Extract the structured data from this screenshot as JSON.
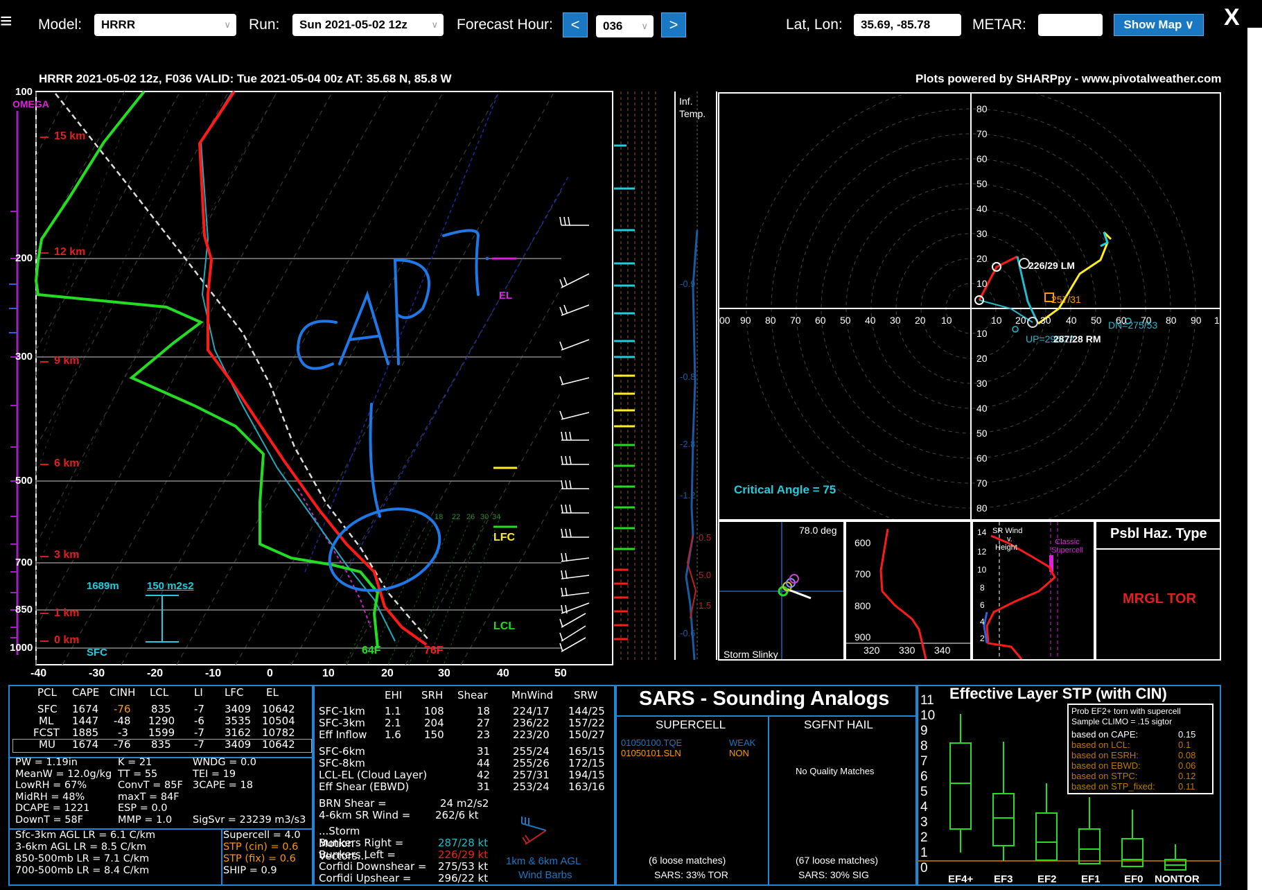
{
  "toolbar": {
    "model_label": "Model:",
    "model_value": "HRRR",
    "run_label": "Run:",
    "run_value": "Sun 2021-05-02 12z",
    "fh_label": "Forecast Hour:",
    "prev": "<",
    "fh_value": "036",
    "next": ">",
    "latlon_label": "Lat, Lon:",
    "latlon_value": "35.69, -85.78",
    "metar_label": "METAR:",
    "metar_value": "",
    "show_map": "Show Map ∨",
    "close": "X"
  },
  "header": {
    "title": "HRRR 2021-05-02 12z, F036  VALID: Tue 2021-05-04 00z  AT: 35.68 N, 85.8 W",
    "credit": "Plots powered by SHARPpy - www.pivotalweather.com"
  },
  "skewt": {
    "omega": "OMEGA",
    "pressure_labels": [
      "100",
      "200",
      "300",
      "500",
      "700",
      "850",
      "1000"
    ],
    "height_labels": [
      "15 km",
      "12 km",
      "9 km",
      "6 km",
      "3 km",
      "1 km",
      "0 km"
    ],
    "temp_labels": [
      "-40",
      "-30",
      "-20",
      "-10",
      "0",
      "10",
      "20",
      "30",
      "40",
      "50"
    ],
    "mixing_labels": [
      "18",
      "22",
      "26",
      "30",
      "34"
    ],
    "el": "EL",
    "lfc": "LFC",
    "lcl": "LCL",
    "sfc": "SFC",
    "lcl_height": "1689m",
    "srh_label": "150 m2s2",
    "sfc_td": "64F",
    "sfc_t": "76F",
    "annotation": "CAP?"
  },
  "inferred_temp": {
    "title1": "Inf.",
    "title2": "Temp.",
    "values": [
      "-0.9",
      "-0.8",
      "-2.8",
      "-1.2",
      "0.5",
      "5.0",
      "1.5",
      "-0.6"
    ]
  },
  "hodograph": {
    "critical_angle": "Critical Angle = 75",
    "x_labels": [
      "00",
      "90",
      "80",
      "70",
      "60",
      "50",
      "40",
      "30",
      "20",
      "10",
      "10",
      "20",
      "30",
      "40",
      "50",
      "60",
      "70",
      "80",
      "90",
      "1"
    ],
    "y_labels": [
      "80",
      "70",
      "60",
      "50",
      "40",
      "30",
      "20",
      "10",
      "10",
      "20",
      "30",
      "40",
      "50",
      "60",
      "70",
      "80"
    ],
    "lm": "226/29 LM",
    "mean": "257/31",
    "rm": "287/28 RM",
    "up": "UP=296/22",
    "dn": "DN=275/53"
  },
  "slinky": {
    "angle": "78.0 deg",
    "label": "Storm Slinky"
  },
  "theta": {
    "p_labels": [
      "600",
      "700",
      "800",
      "900"
    ],
    "t_labels": [
      "320",
      "330",
      "340"
    ]
  },
  "srwind": {
    "title": "SR Wind v. Height",
    "title_a": "SR Wind",
    "title_b": "v.",
    "title_c": "Height",
    "classic": "Classic Supercell",
    "y_labels": [
      "14",
      "12",
      "10",
      "8",
      "6",
      "4",
      "2"
    ]
  },
  "hazard": {
    "title": "Psbl Haz. Type",
    "value": "MRGL TOR"
  },
  "thermo": {
    "headers": [
      "PCL",
      "CAPE",
      "CINH",
      "LCL",
      "LI",
      "LFC",
      "EL"
    ],
    "rows": [
      [
        "SFC",
        "1674",
        "-76",
        "835",
        "-7",
        "3409",
        "10642"
      ],
      [
        "ML",
        "1447",
        "-48",
        "1290",
        "-6",
        "3535",
        "10504"
      ],
      [
        "FCST",
        "1885",
        "-3",
        "1599",
        "-7",
        "3162",
        "10782"
      ],
      [
        "MU",
        "1674",
        "-76",
        "835",
        "-7",
        "3409",
        "10642"
      ]
    ],
    "misc_col1": [
      "PW = 1.19in",
      "MeanW = 12.0g/kg",
      "LowRH = 67%",
      "MidRH = 48%",
      "DCAPE = 1221",
      "DownT = 58F"
    ],
    "misc_col2": [
      "K = 21",
      "TT = 55",
      "ConvT = 85F",
      "maxT = 84F",
      "ESP = 0.0",
      "MMP = 1.0"
    ],
    "misc_col3": [
      "WNDG = 0.0",
      "TEI = 19",
      "3CAPE = 18",
      "",
      "",
      "SigSvr = 23239 m3/s3"
    ],
    "lapse": [
      "Sfc-3km AGL LR = 6.1 C/km",
      "3-6km AGL LR = 8.5 C/km",
      "850-500mb LR = 7.1 C/km",
      "700-500mb LR = 8.4 C/km"
    ],
    "params": [
      "Supercell = 4.0",
      "STP (cin) = 0.6",
      "STP (fix) = 0.6",
      "SHIP = 0.9"
    ]
  },
  "kinematic": {
    "headers": [
      "EHI",
      "SRH",
      "Shear",
      "MnWind",
      "SRW"
    ],
    "rows": [
      [
        "SFC-1km",
        "1.1",
        "108",
        "18",
        "224/17",
        "144/25"
      ],
      [
        "SFC-3km",
        "2.1",
        "204",
        "27",
        "236/22",
        "157/22"
      ],
      [
        "Eff Inflow",
        "1.6",
        "150",
        "23",
        "223/20",
        "150/27"
      ],
      [
        "SFC-6km",
        "",
        "",
        "31",
        "255/24",
        "165/15"
      ],
      [
        "SFC-8km",
        "",
        "",
        "44",
        "255/26",
        "172/15"
      ],
      [
        "LCL-EL (Cloud Layer)",
        "",
        "",
        "42",
        "257/31",
        "194/15"
      ],
      [
        "Eff Shear (EBWD)",
        "",
        "",
        "31",
        "253/24",
        "163/16"
      ]
    ],
    "brn": [
      "BRN Shear =",
      "24 m2/s2"
    ],
    "sr46": [
      "4-6km SR Wind =",
      "262/6 kt"
    ],
    "storm_motion": "...Storm Motion Vectors...",
    "bunkers_right": [
      "Bunkers Right =",
      "287/28 kt"
    ],
    "bunkers_left": [
      "Bunkers Left =",
      "226/29 kt"
    ],
    "corfidi_down": [
      "Corfidi Downshear =",
      "275/53 kt"
    ],
    "corfidi_up": [
      "Corfidi Upshear =",
      "296/22 kt"
    ],
    "barb_label1": "1km & 6km AGL",
    "barb_label2": "Wind Barbs"
  },
  "sars": {
    "title": "SARS - Sounding Analogs",
    "supercell": "SUPERCELL",
    "hail": "SGFNT HAIL",
    "match1": "01050100.TQE",
    "match1_tag": "WEAK",
    "match2": "01050101.SLN",
    "match2_tag": "NON",
    "no_match": "No Quality Matches",
    "loose1": "(6 loose matches)",
    "sars1": "SARS: 33% TOR",
    "loose2": "(67 loose matches)",
    "sars2": "SARS: 30% SIG"
  },
  "stp": {
    "title": "Effective Layer STP (with CIN)",
    "prob_title1": "Prob EF2+ torn with supercell",
    "prob_title2": "Sample CLIMO = .15 sigtor",
    "probs": [
      [
        "based on CAPE:",
        "0.15"
      ],
      [
        "based on LCL:",
        "0.1"
      ],
      [
        "based on ESRH:",
        "0.08"
      ],
      [
        "based on EBWD:",
        "0.06"
      ],
      [
        "based on STPC:",
        "0.12"
      ],
      [
        "based on STP_fixed:",
        "0.11"
      ]
    ],
    "y_labels": [
      "11",
      "10",
      "9",
      "8",
      "7",
      "6",
      "5",
      "4",
      "3",
      "2",
      "1",
      "0"
    ],
    "categories": [
      "EF4+",
      "EF3",
      "EF2",
      "EF1",
      "EF0",
      "NONTOR"
    ]
  },
  "colors": {
    "accent": "#1e88d6",
    "temp": "#ff1a1a",
    "dewpoint": "#22dd22",
    "cyan": "#22bbcc",
    "magenta": "#dd22dd",
    "yellow": "#ffee22"
  }
}
